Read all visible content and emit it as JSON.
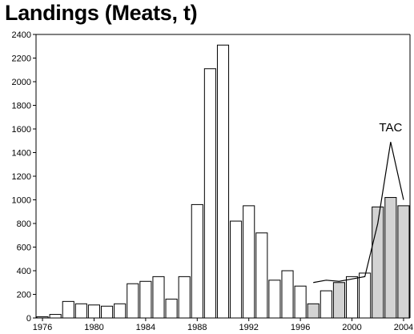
{
  "chart_data": {
    "type": "bar",
    "title": "Landings (Meats, t)",
    "xlabel": "",
    "ylabel": "",
    "ylim": [
      0,
      2400
    ],
    "yticks": [
      0,
      200,
      400,
      600,
      800,
      1000,
      1200,
      1400,
      1600,
      1800,
      2000,
      2200,
      2400
    ],
    "xticks": [
      1976,
      1980,
      1984,
      1988,
      1992,
      1996,
      2000,
      2004
    ],
    "grid": false,
    "categories": [
      1976,
      1977,
      1978,
      1979,
      1980,
      1981,
      1982,
      1983,
      1984,
      1985,
      1986,
      1987,
      1988,
      1989,
      1990,
      1991,
      1992,
      1993,
      1994,
      1995,
      1996,
      1997,
      1998,
      1999,
      2000,
      2001,
      2002,
      2003,
      2004
    ],
    "series": [
      {
        "values": [
          10,
          30,
          140,
          120,
          110,
          100,
          120,
          290,
          310,
          350,
          160,
          350,
          960,
          2110,
          2310,
          820,
          950,
          720,
          320,
          400,
          270,
          120,
          230,
          300,
          350,
          380,
          940,
          1020,
          950
        ],
        "fill_colors": [
          "#ffffff",
          "#ffffff",
          "#ffffff",
          "#ffffff",
          "#ffffff",
          "#ffffff",
          "#ffffff",
          "#ffffff",
          "#ffffff",
          "#ffffff",
          "#ffffff",
          "#ffffff",
          "#ffffff",
          "#ffffff",
          "#ffffff",
          "#ffffff",
          "#ffffff",
          "#ffffff",
          "#ffffff",
          "#ffffff",
          "#ffffff",
          "#d3d3d3",
          "#ffffff",
          "#d3d3d3",
          "#ffffff",
          "#ffffff",
          "#d3d3d3",
          "#d3d3d3",
          "#d3d3d3"
        ]
      },
      {
        "type": "line",
        "x": [
          1997,
          1998,
          1999,
          2000,
          2001,
          2002,
          2003,
          2004
        ],
        "values": [
          300,
          320,
          310,
          330,
          350,
          800,
          1490,
          1000
        ]
      }
    ],
    "annotations": [
      {
        "text": "TAC",
        "x": 2003,
        "y": 1500
      }
    ]
  }
}
